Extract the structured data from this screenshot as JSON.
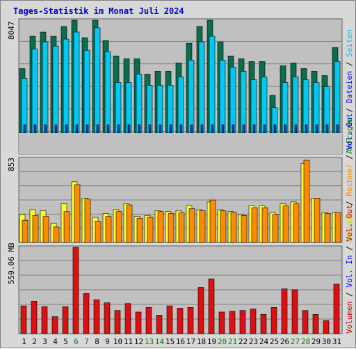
{
  "title": "Tages-Statistik im Monat Juli 2024",
  "colors": {
    "panel_bg": "#c0c0c0",
    "grid": "#808080",
    "anfragen": "#0a6e4e",
    "dateien": "#00c8f0",
    "seiten": "#0a3cb4",
    "besuche": "#ffff30",
    "rechner": "#ff8c00",
    "volumen": "#dc1010",
    "weekend_label": "#008000",
    "weekday_label": "#000000"
  },
  "panels": [
    {
      "name": "requests",
      "scale_label": "8047",
      "right_label": [
        {
          "text": "Anfragen",
          "color": "#008000"
        },
        {
          "text": " / ",
          "color": "#000000"
        },
        {
          "text": "Dateien",
          "color": "#0000ff"
        },
        {
          "text": " / ",
          "color": "#000000"
        },
        {
          "text": "Seiten",
          "color": "#00c8f0"
        }
      ]
    },
    {
      "name": "visits",
      "scale_label": "853",
      "right_label": [
        {
          "text": "Besuche",
          "color": "#cccc00"
        },
        {
          "text": " / ",
          "color": "#000000"
        },
        {
          "text": "Rechner",
          "color": "#ff8c00"
        },
        {
          "text": " / ",
          "color": "#000000"
        },
        {
          "text": "Vol. Out",
          "color": "#0000ff"
        }
      ]
    },
    {
      "name": "volume",
      "scale_label": "559.06 MB",
      "right_label": [
        {
          "text": "Volumen",
          "color": "#cc0000"
        },
        {
          "text": " / ",
          "color": "#000000"
        },
        {
          "text": "Vol. In",
          "color": "#0000ff"
        },
        {
          "text": " / ",
          "color": "#000000"
        },
        {
          "text": "Vol. Out",
          "color": "#cc0000"
        }
      ]
    }
  ],
  "chart_data": {
    "type": "bar",
    "title": "Tages-Statistik im Monat Juli 2024",
    "categories": [
      "1",
      "2",
      "3",
      "4",
      "5",
      "6",
      "7",
      "8",
      "9",
      "10",
      "11",
      "12",
      "13",
      "14",
      "15",
      "16",
      "17",
      "18",
      "19",
      "20",
      "21",
      "22",
      "23",
      "24",
      "25",
      "26",
      "27",
      "28",
      "29",
      "30",
      "31"
    ],
    "weekend_days": [
      "6",
      "7",
      "13",
      "14",
      "20",
      "21",
      "27",
      "28"
    ],
    "requests_max": 8047,
    "series_requests": [
      {
        "name": "Anfragen",
        "values": [
          4600,
          6900,
          7200,
          6900,
          7600,
          8047,
          6800,
          8047,
          6600,
          5500,
          5300,
          5300,
          4200,
          4400,
          4400,
          5000,
          6400,
          7600,
          8047,
          6500,
          5500,
          5300,
          5100,
          5100,
          2700,
          4800,
          5000,
          4600,
          4400,
          4100,
          6100
        ]
      },
      {
        "name": "Dateien",
        "values": [
          4300,
          6400,
          6900,
          6600,
          7100,
          7600,
          6300,
          7900,
          6200,
          4000,
          4000,
          4600,
          3800,
          3800,
          3800,
          4400,
          5600,
          6900,
          7300,
          5600,
          5100,
          4800,
          4200,
          4400,
          2200,
          4000,
          4400,
          4200,
          4000,
          3700,
          5500
        ]
      }
    ],
    "seiten_ticks": "short dark-blue marks at base of each day",
    "visits_max": 853,
    "series_visits": [
      {
        "name": "Besuche",
        "values": [
          290,
          340,
          330,
          200,
          400,
          630,
          460,
          260,
          300,
          340,
          400,
          270,
          280,
          330,
          320,
          330,
          380,
          340,
          420,
          340,
          320,
          290,
          380,
          380,
          310,
          400,
          420,
          820,
          460,
          310,
          310
        ]
      },
      {
        "name": "Rechner",
        "values": [
          230,
          280,
          270,
          160,
          320,
          600,
          450,
          220,
          270,
          320,
          390,
          250,
          260,
          320,
          300,
          310,
          350,
          330,
          440,
          330,
          310,
          280,
          360,
          360,
          290,
          380,
          400,
          853,
          460,
          300,
          310
        ]
      }
    ],
    "volume_max_mb": 559.06,
    "series_volume": [
      {
        "name": "Volumen",
        "values": [
          180,
          210,
          175,
          110,
          175,
          559,
          260,
          220,
          200,
          150,
          195,
          140,
          170,
          120,
          180,
          165,
          170,
          300,
          355,
          140,
          145,
          150,
          160,
          125,
          170,
          290,
          285,
          150,
          125,
          85,
          320
        ]
      }
    ]
  }
}
